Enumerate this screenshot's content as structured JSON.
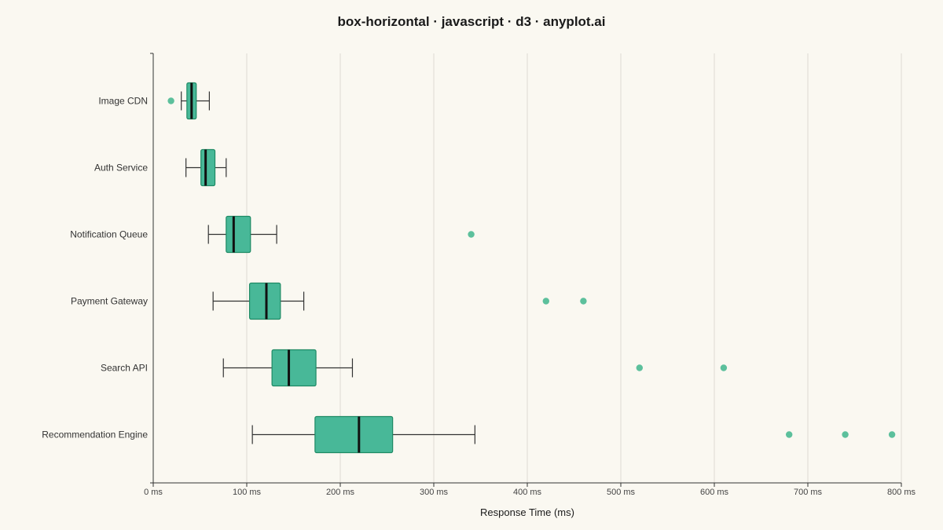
{
  "chart_data": {
    "type": "box-horizontal",
    "title": "box-horizontal · javascript · d3 · anyplot.ai",
    "xlabel": "Response Time (ms)",
    "ylabel": "",
    "xlim": [
      0,
      800
    ],
    "x_ticks": [
      0,
      100,
      200,
      300,
      400,
      500,
      600,
      700,
      800
    ],
    "x_tick_labels": [
      "0 ms",
      "100 ms",
      "200 ms",
      "300 ms",
      "400 ms",
      "500 ms",
      "600 ms",
      "700 ms",
      "800 ms"
    ],
    "grid": "vertical",
    "colors": {
      "box_fill": "#48B898",
      "box_stroke": "#1E8A64",
      "median": "#111111",
      "whisker": "#333333",
      "outlier": "#5CC09C",
      "grid": "#DDDAD2",
      "background": "#FAF8F1"
    },
    "series": [
      {
        "category": "Image CDN",
        "whisker_low": 30,
        "q1": 36,
        "median": 41,
        "q3": 46,
        "whisker_high": 60,
        "outliers": [
          19
        ]
      },
      {
        "category": "Auth Service",
        "whisker_low": 35,
        "q1": 51,
        "median": 56,
        "q3": 66,
        "whisker_high": 78,
        "outliers": []
      },
      {
        "category": "Notification Queue",
        "whisker_low": 59,
        "q1": 78,
        "median": 86,
        "q3": 104,
        "whisker_high": 132,
        "outliers": [
          340
        ]
      },
      {
        "category": "Payment Gateway",
        "whisker_low": 64,
        "q1": 103,
        "median": 121,
        "q3": 136,
        "whisker_high": 161,
        "outliers": [
          420,
          460
        ]
      },
      {
        "category": "Search API",
        "whisker_low": 75,
        "q1": 127,
        "median": 145,
        "q3": 174,
        "whisker_high": 213,
        "outliers": [
          520,
          610
        ]
      },
      {
        "category": "Recommendation Engine",
        "whisker_low": 106,
        "q1": 173,
        "median": 220,
        "q3": 256,
        "whisker_high": 344,
        "outliers": [
          680,
          740,
          790
        ]
      }
    ]
  }
}
